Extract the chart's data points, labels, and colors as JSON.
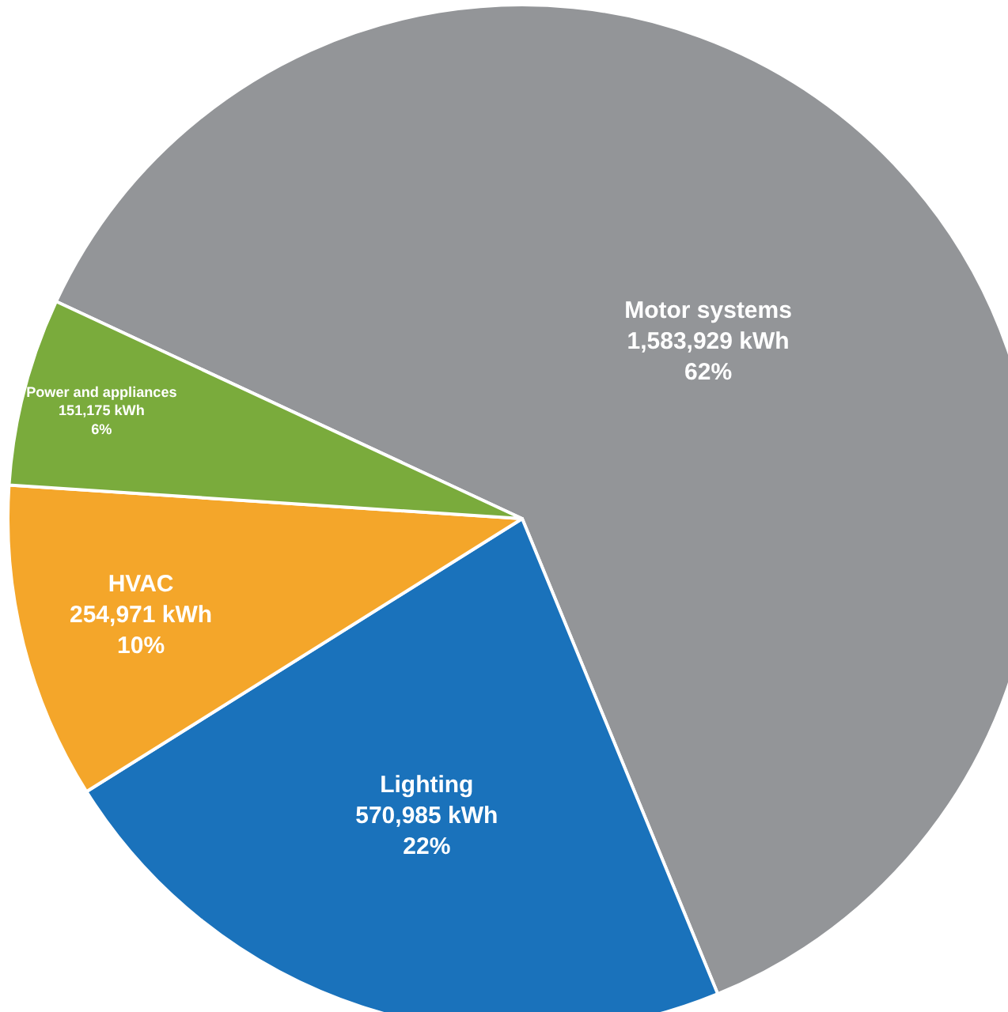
{
  "chart_data": {
    "type": "pie",
    "categories": [
      "Motor systems",
      "Lighting",
      "HVAC",
      "Power and appliances"
    ],
    "values": [
      1583929,
      570985,
      254971,
      151175
    ],
    "value_labels": [
      "1,583,929 kWh\n62%",
      "570,985 kWh\n22%",
      "254,971 kWh\n10%",
      "151,175 kWh\n6%"
    ],
    "colors": [
      "#939598",
      "#1a72bb",
      "#f4a62a",
      "#7aab3c"
    ],
    "legend": false
  }
}
